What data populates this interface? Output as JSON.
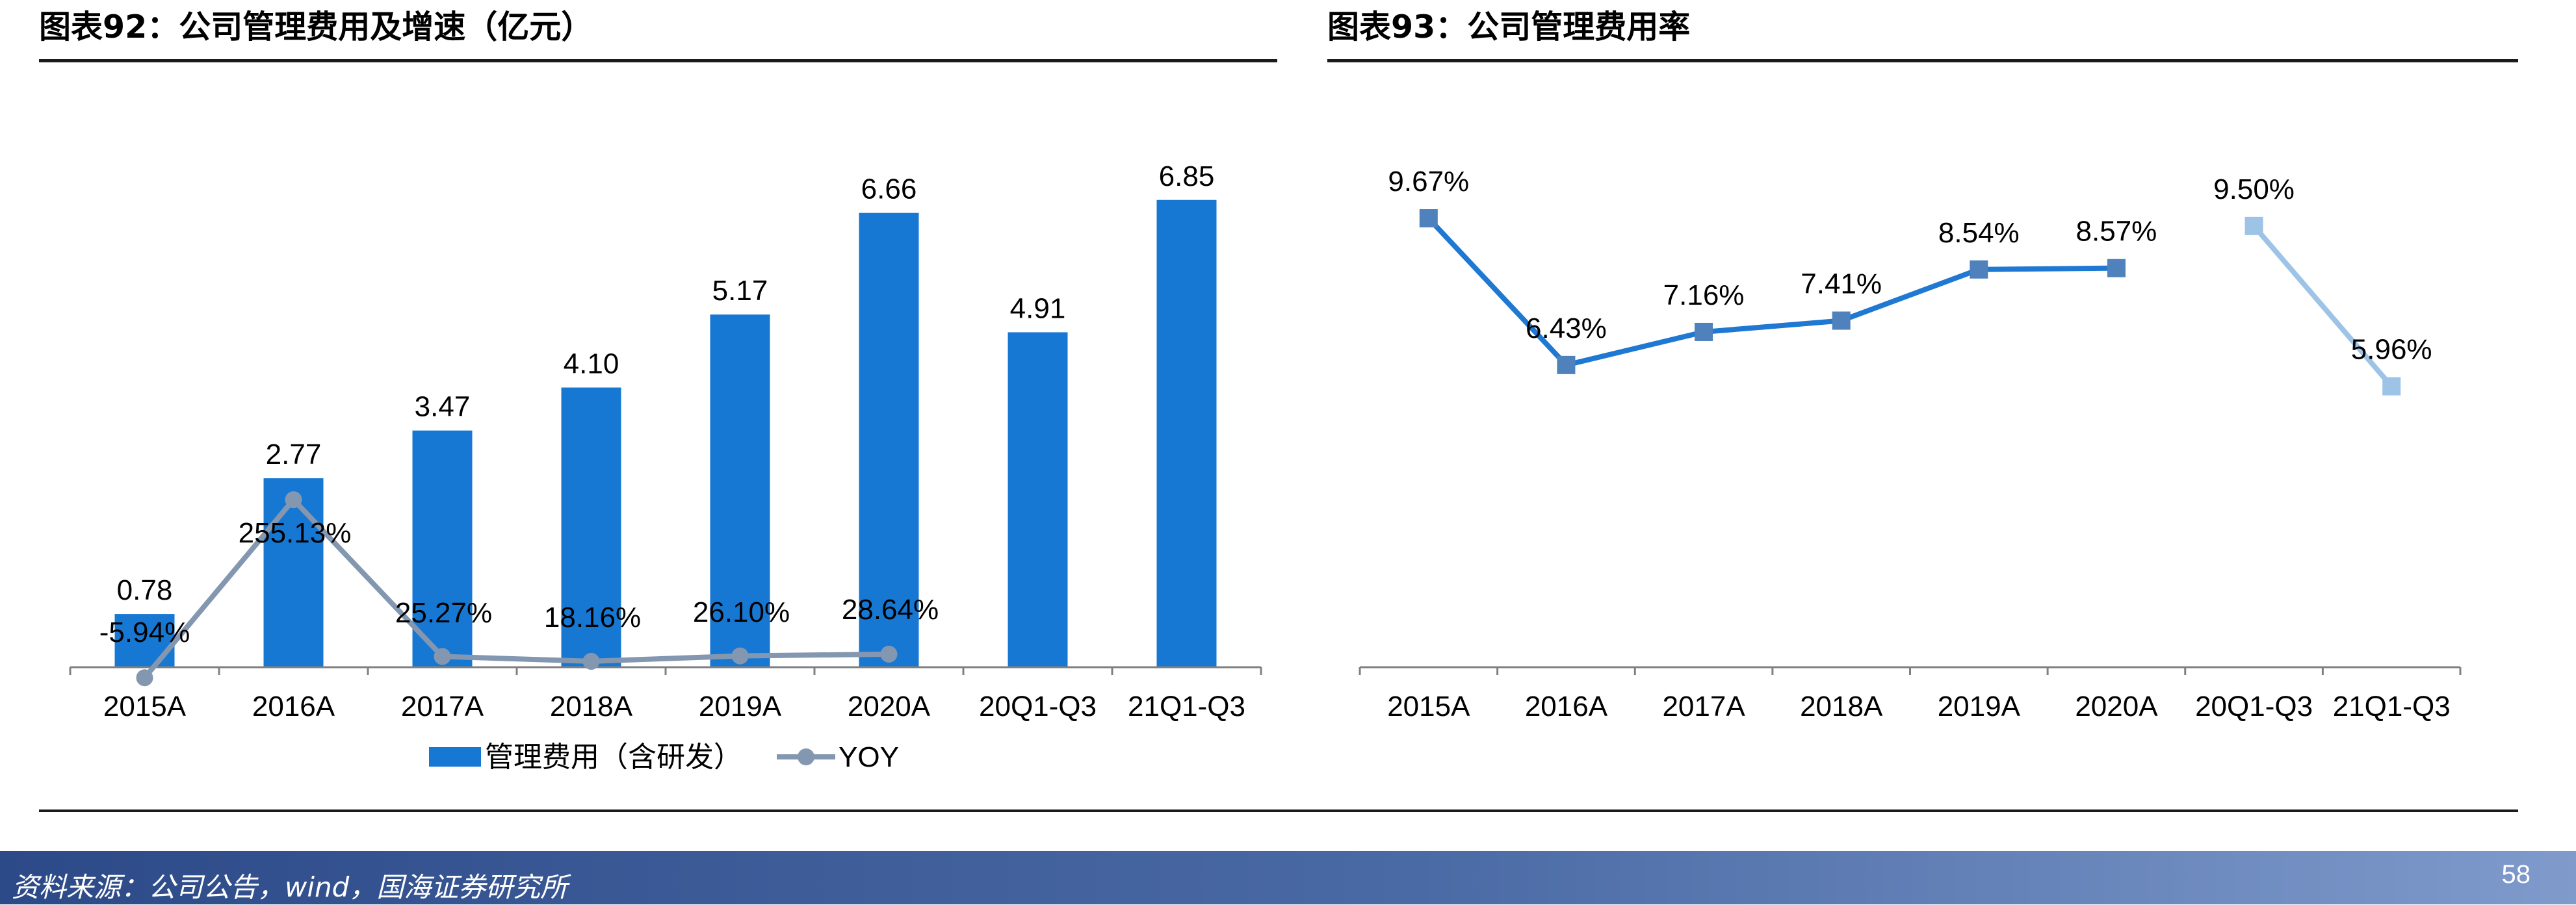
{
  "titles": {
    "left": "图表92：公司管理费用及增速（亿元）",
    "right": "图表93：公司管理费用率"
  },
  "footer": {
    "source": "资料来源：公司公告，wind，国海证券研究所",
    "page_number": "58"
  },
  "colors": {
    "bar": "#1778d4",
    "yoy_line": "#8497b0",
    "rate_line": "#1f78d1",
    "rate_marker": "#4f81bd",
    "rate_forecast_line": "#9dc3e6",
    "rate_forecast_marker": "#9dc3e6"
  },
  "chart_data": [
    {
      "type": "bar",
      "categories": [
        "2015A",
        "2016A",
        "2017A",
        "2018A",
        "2019A",
        "2020A",
        "20Q1-Q3",
        "21Q1-Q3"
      ],
      "series": [
        {
          "name": "管理费用（含研发）",
          "type": "bar",
          "values": [
            0.78,
            2.77,
            3.47,
            4.1,
            5.17,
            6.66,
            4.91,
            6.85
          ],
          "labels": [
            "0.78",
            "2.77",
            "3.47",
            "4.10",
            "5.17",
            "6.66",
            "4.91",
            "6.85"
          ]
        },
        {
          "name": "YOY",
          "type": "line",
          "values": [
            -5.94,
            255.13,
            25.27,
            18.16,
            26.1,
            28.64,
            null,
            null
          ],
          "labels": [
            "-5.94%",
            "255.13%",
            "25.27%",
            "18.16%",
            "26.10%",
            "28.64%",
            "",
            ""
          ]
        }
      ],
      "legend_position": "bottom",
      "grid": false
    },
    {
      "type": "line",
      "categories": [
        "2015A",
        "2016A",
        "2017A",
        "2018A",
        "2019A",
        "2020A",
        "20Q1-Q3",
        "21Q1-Q3"
      ],
      "series": [
        {
          "values": [
            9.67,
            6.43,
            7.16,
            7.41,
            8.54,
            8.57,
            null,
            null
          ],
          "labels": [
            "9.67%",
            "6.43%",
            "7.16%",
            "7.41%",
            "8.54%",
            "8.57%",
            "",
            ""
          ]
        },
        {
          "values": [
            null,
            null,
            null,
            null,
            null,
            null,
            9.5,
            5.96
          ],
          "labels": [
            "",
            "",
            "",
            "",
            "",
            "",
            "9.50%",
            "5.96%"
          ]
        }
      ],
      "legend_position": "none",
      "grid": false
    }
  ]
}
